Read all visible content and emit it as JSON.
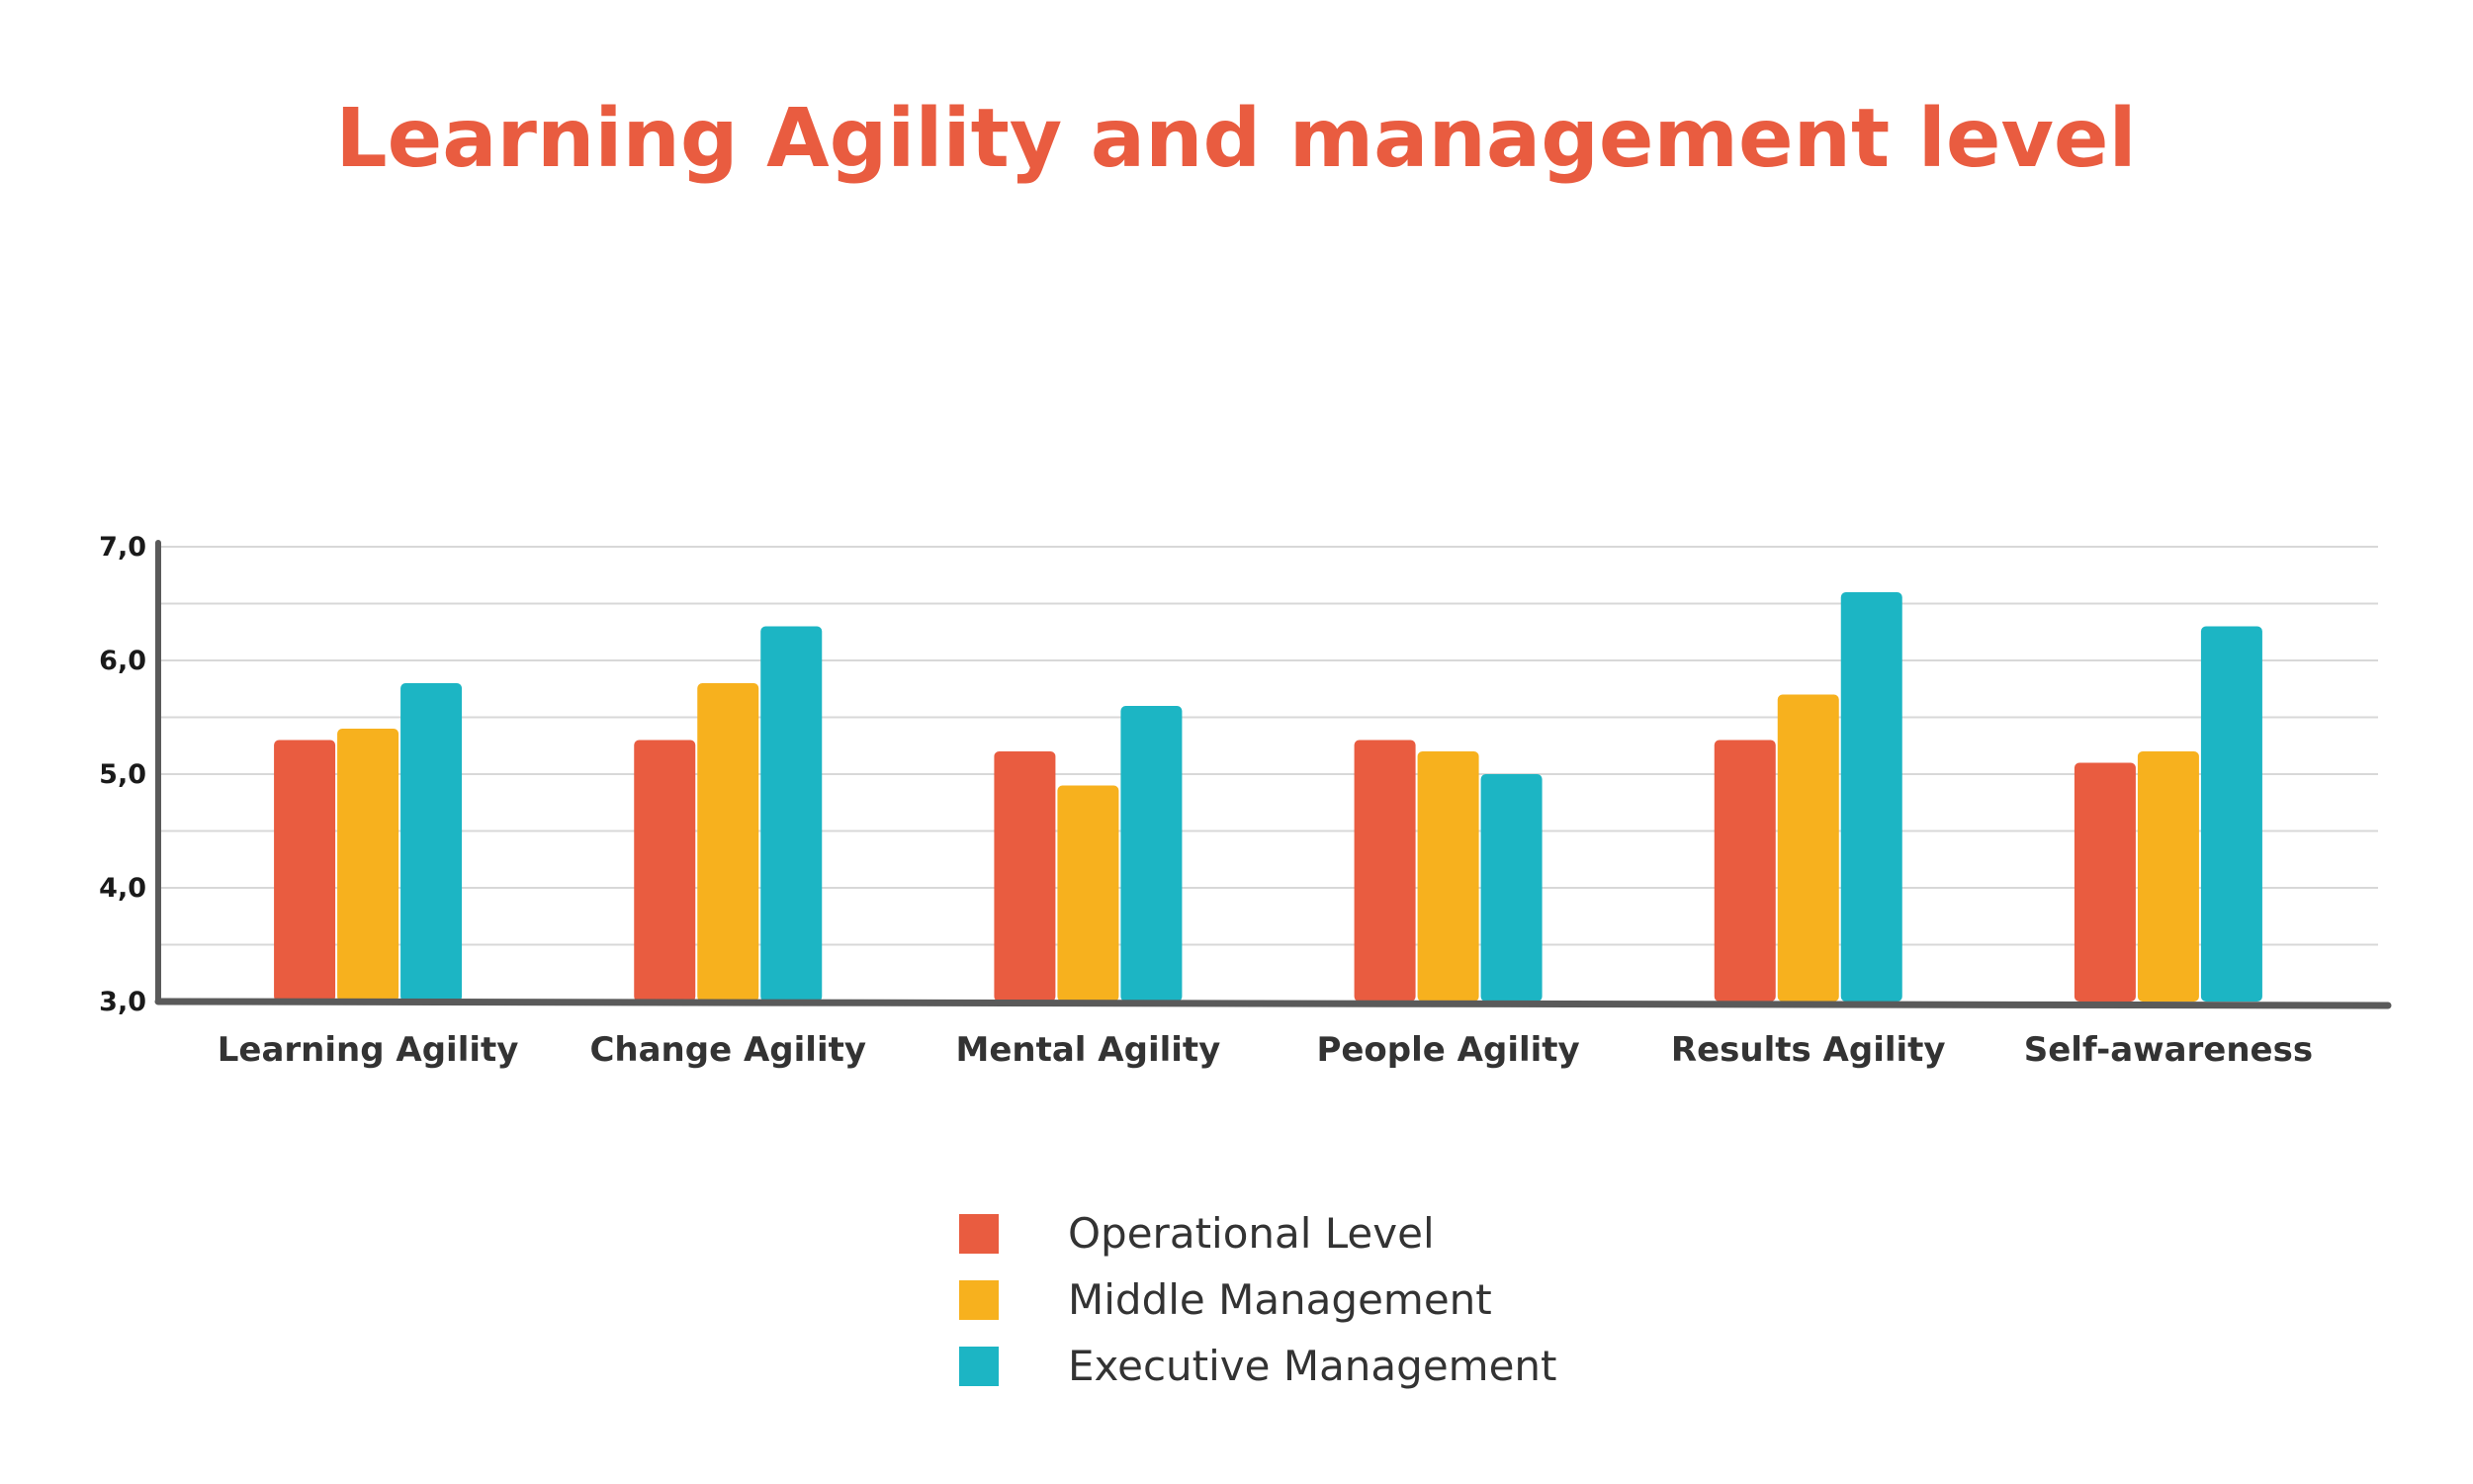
{
  "colors": {
    "title": "#e95c40",
    "grid": "#d8d8d8",
    "axis": "#5a5a5a"
  },
  "chart_data": {
    "type": "bar",
    "title": "Learning Agility and management level",
    "xlabel": "",
    "ylabel": "",
    "ylim": [
      3.0,
      7.0
    ],
    "yticks": [
      "3,0",
      "4,0",
      "5,0",
      "6,0",
      "7,0"
    ],
    "grid": true,
    "legend_position": "bottom",
    "categories": [
      "Learning Agility",
      "Change Agility",
      "Mental Agility",
      "People Agility",
      "Results Agility",
      "Self-awareness"
    ],
    "series": [
      {
        "name": "Operational Level",
        "color": "#e95c40",
        "values": [
          5.3,
          5.3,
          5.2,
          5.3,
          5.3,
          5.1
        ]
      },
      {
        "name": "Middle Management",
        "color": "#f7b11e",
        "values": [
          5.4,
          5.8,
          4.9,
          5.2,
          5.7,
          5.2
        ]
      },
      {
        "name": "Executive Management",
        "color": "#1cb5c4",
        "values": [
          5.8,
          6.3,
          5.6,
          5.0,
          6.6,
          6.3
        ]
      }
    ]
  }
}
